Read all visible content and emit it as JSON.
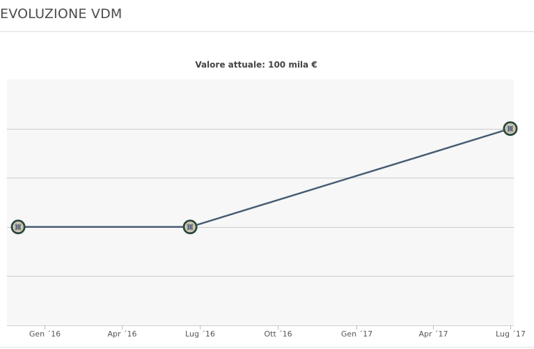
{
  "header": {
    "title": "EVOLUZIONE VDM"
  },
  "chart_data": {
    "type": "line",
    "title": "Valore attuale: 100 mila €",
    "xlabel": "",
    "ylabel": "",
    "x_tick_labels": [
      "Gen ´16",
      "Apr ´16",
      "Lug ´16",
      "Ott ´16",
      "Gen ´17",
      "Apr ´17",
      "Lug ´17"
    ],
    "x_tick_dates": [
      "2016-01-01",
      "2016-04-01",
      "2016-07-01",
      "2016-10-01",
      "2017-01-01",
      "2017-04-01",
      "2017-07-01"
    ],
    "y_axis_labels_shown": false,
    "grid": true,
    "legend": "none",
    "series": [
      {
        "points": [
          {
            "x": "2015-12-01",
            "y": 50000
          },
          {
            "x": "2016-06-20",
            "y": 50000
          },
          {
            "x": "2017-07-01",
            "y": 100000
          }
        ],
        "marker_icon": "club-crest-icon"
      }
    ],
    "ylim": [
      0,
      125000
    ],
    "y_gridlines": [
      25000,
      50000,
      75000,
      100000
    ],
    "colors": {
      "line": "#475d73",
      "marker_ring": "#2d4a3a",
      "plot_background": "#f7f7f7",
      "gridline": "#cccccc"
    }
  }
}
